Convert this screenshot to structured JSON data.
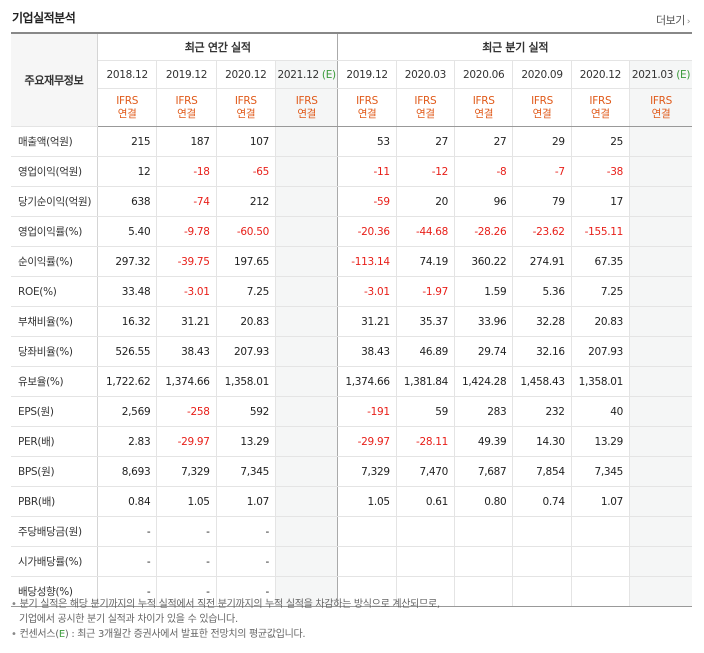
{
  "header": {
    "title": "기업실적분석",
    "more_label": "더보기",
    "more_chevron": "›"
  },
  "table": {
    "label_header": "주요재무정보",
    "group_annual": "최근 연간 실적",
    "group_quarter": "최근 분기 실적",
    "annual_periods": [
      {
        "date": "2018.12",
        "est": ""
      },
      {
        "date": "2019.12",
        "est": ""
      },
      {
        "date": "2020.12",
        "est": ""
      },
      {
        "date": "2021.12",
        "est": "(E)"
      }
    ],
    "quarter_periods": [
      {
        "date": "2019.12",
        "est": ""
      },
      {
        "date": "2020.03",
        "est": ""
      },
      {
        "date": "2020.06",
        "est": ""
      },
      {
        "date": "2020.09",
        "est": ""
      },
      {
        "date": "2020.12",
        "est": ""
      },
      {
        "date": "2021.03",
        "est": "(E)"
      }
    ],
    "std_line1": "IFRS",
    "std_line2": "연결",
    "rows": [
      {
        "label": "매출액(억원)",
        "values": [
          "215",
          "187",
          "107",
          "",
          "53",
          "27",
          "27",
          "29",
          "25",
          ""
        ]
      },
      {
        "label": "영업이익(억원)",
        "values": [
          "12",
          "-18",
          "-65",
          "",
          "-11",
          "-12",
          "-8",
          "-7",
          "-38",
          ""
        ]
      },
      {
        "label": "당기순이익(억원)",
        "values": [
          "638",
          "-74",
          "212",
          "",
          "-59",
          "20",
          "96",
          "79",
          "17",
          ""
        ]
      },
      {
        "label": "영업이익률(%)",
        "values": [
          "5.40",
          "-9.78",
          "-60.50",
          "",
          "-20.36",
          "-44.68",
          "-28.26",
          "-23.62",
          "-155.11",
          ""
        ]
      },
      {
        "label": "순이익률(%)",
        "values": [
          "297.32",
          "-39.75",
          "197.65",
          "",
          "-113.14",
          "74.19",
          "360.22",
          "274.91",
          "67.35",
          ""
        ]
      },
      {
        "label": "ROE(%)",
        "values": [
          "33.48",
          "-3.01",
          "7.25",
          "",
          "-3.01",
          "-1.97",
          "1.59",
          "5.36",
          "7.25",
          ""
        ]
      },
      {
        "label": "부채비율(%)",
        "values": [
          "16.32",
          "31.21",
          "20.83",
          "",
          "31.21",
          "35.37",
          "33.96",
          "32.28",
          "20.83",
          ""
        ]
      },
      {
        "label": "당좌비율(%)",
        "values": [
          "526.55",
          "38.43",
          "207.93",
          "",
          "38.43",
          "46.89",
          "29.74",
          "32.16",
          "207.93",
          ""
        ]
      },
      {
        "label": "유보율(%)",
        "values": [
          "1,722.62",
          "1,374.66",
          "1,358.01",
          "",
          "1,374.66",
          "1,381.84",
          "1,424.28",
          "1,458.43",
          "1,358.01",
          ""
        ]
      },
      {
        "label": "EPS(원)",
        "values": [
          "2,569",
          "-258",
          "592",
          "",
          "-191",
          "59",
          "283",
          "232",
          "40",
          ""
        ]
      },
      {
        "label": "PER(배)",
        "values": [
          "2.83",
          "-29.97",
          "13.29",
          "",
          "-29.97",
          "-28.11",
          "49.39",
          "14.30",
          "13.29",
          ""
        ]
      },
      {
        "label": "BPS(원)",
        "values": [
          "8,693",
          "7,329",
          "7,345",
          "",
          "7,329",
          "7,470",
          "7,687",
          "7,854",
          "7,345",
          ""
        ]
      },
      {
        "label": "PBR(배)",
        "values": [
          "0.84",
          "1.05",
          "1.07",
          "",
          "1.05",
          "0.61",
          "0.80",
          "0.74",
          "1.07",
          ""
        ]
      },
      {
        "label": "주당배당금(원)",
        "values": [
          "-",
          "-",
          "-",
          "",
          "",
          "",
          "",
          "",
          "",
          ""
        ]
      },
      {
        "label": "시가배당률(%)",
        "values": [
          "-",
          "-",
          "-",
          "",
          "",
          "",
          "",
          "",
          "",
          ""
        ]
      },
      {
        "label": "배당성향(%)",
        "values": [
          "-",
          "-",
          "-",
          "",
          "",
          "",
          "",
          "",
          "",
          ""
        ]
      }
    ]
  },
  "notes": {
    "line1": "분기 실적은 해당 분기까지의 누적 실적에서 직전 분기까지의 누적 실적을 차감하는 방식으로 계산되므로,",
    "line2": "기업에서 공시한 분기 실적과 차이가 있을 수 있습니다.",
    "line3_prefix": "컨센서스(",
    "line3_mark": "E",
    "line3_suffix": ") : 최근 3개월간 증권사에서 발표한 전망치의 평균값입니다."
  },
  "colors": {
    "negative": "#e8201a",
    "ifrs": "#e05a1a",
    "estimate": "#3a9a3a"
  }
}
